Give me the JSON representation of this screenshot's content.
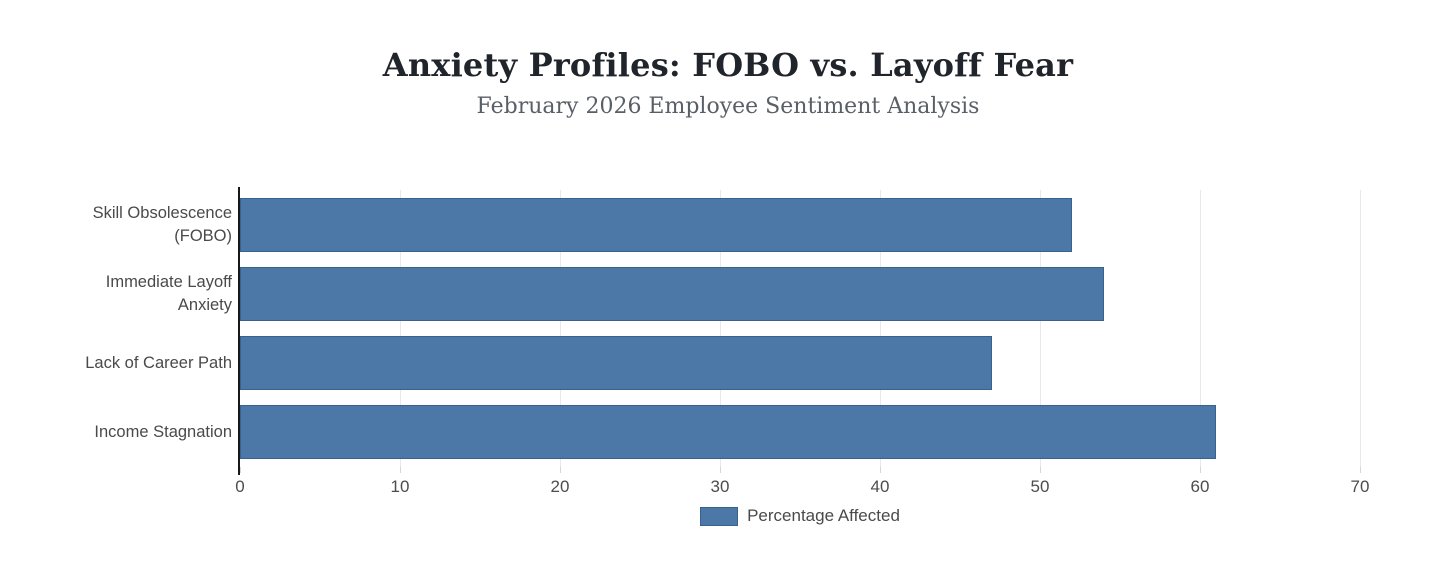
{
  "header": {
    "title": "Anxiety Profiles: FOBO vs. Layoff Fear",
    "subtitle": "February 2026 Employee Sentiment Analysis"
  },
  "legend": {
    "label": "Percentage Affected",
    "swatch_color": "#4c78a8"
  },
  "chart_data": {
    "type": "bar",
    "orientation": "horizontal",
    "title": "Anxiety Profiles: FOBO vs. Layoff Fear",
    "subtitle": "February 2026 Employee Sentiment Analysis",
    "categories": [
      "Skill Obsolescence\n(FOBO)",
      "Immediate Layoff\nAnxiety",
      "Lack of Career Path",
      "Income Stagnation"
    ],
    "series": [
      {
        "name": "Percentage Affected",
        "values": [
          52,
          54,
          47,
          61
        ]
      }
    ],
    "xlabel": "",
    "ylabel": "",
    "xlim": [
      0,
      70
    ],
    "xticks": [
      0,
      10,
      20,
      30,
      40,
      50,
      60,
      70
    ],
    "grid": true,
    "legend_position": "bottom",
    "bar_color": "#4c78a8",
    "bar_border_color": "#39618e",
    "gridline_color": "#e8e8e8",
    "axis_line_color": "#16181a"
  }
}
